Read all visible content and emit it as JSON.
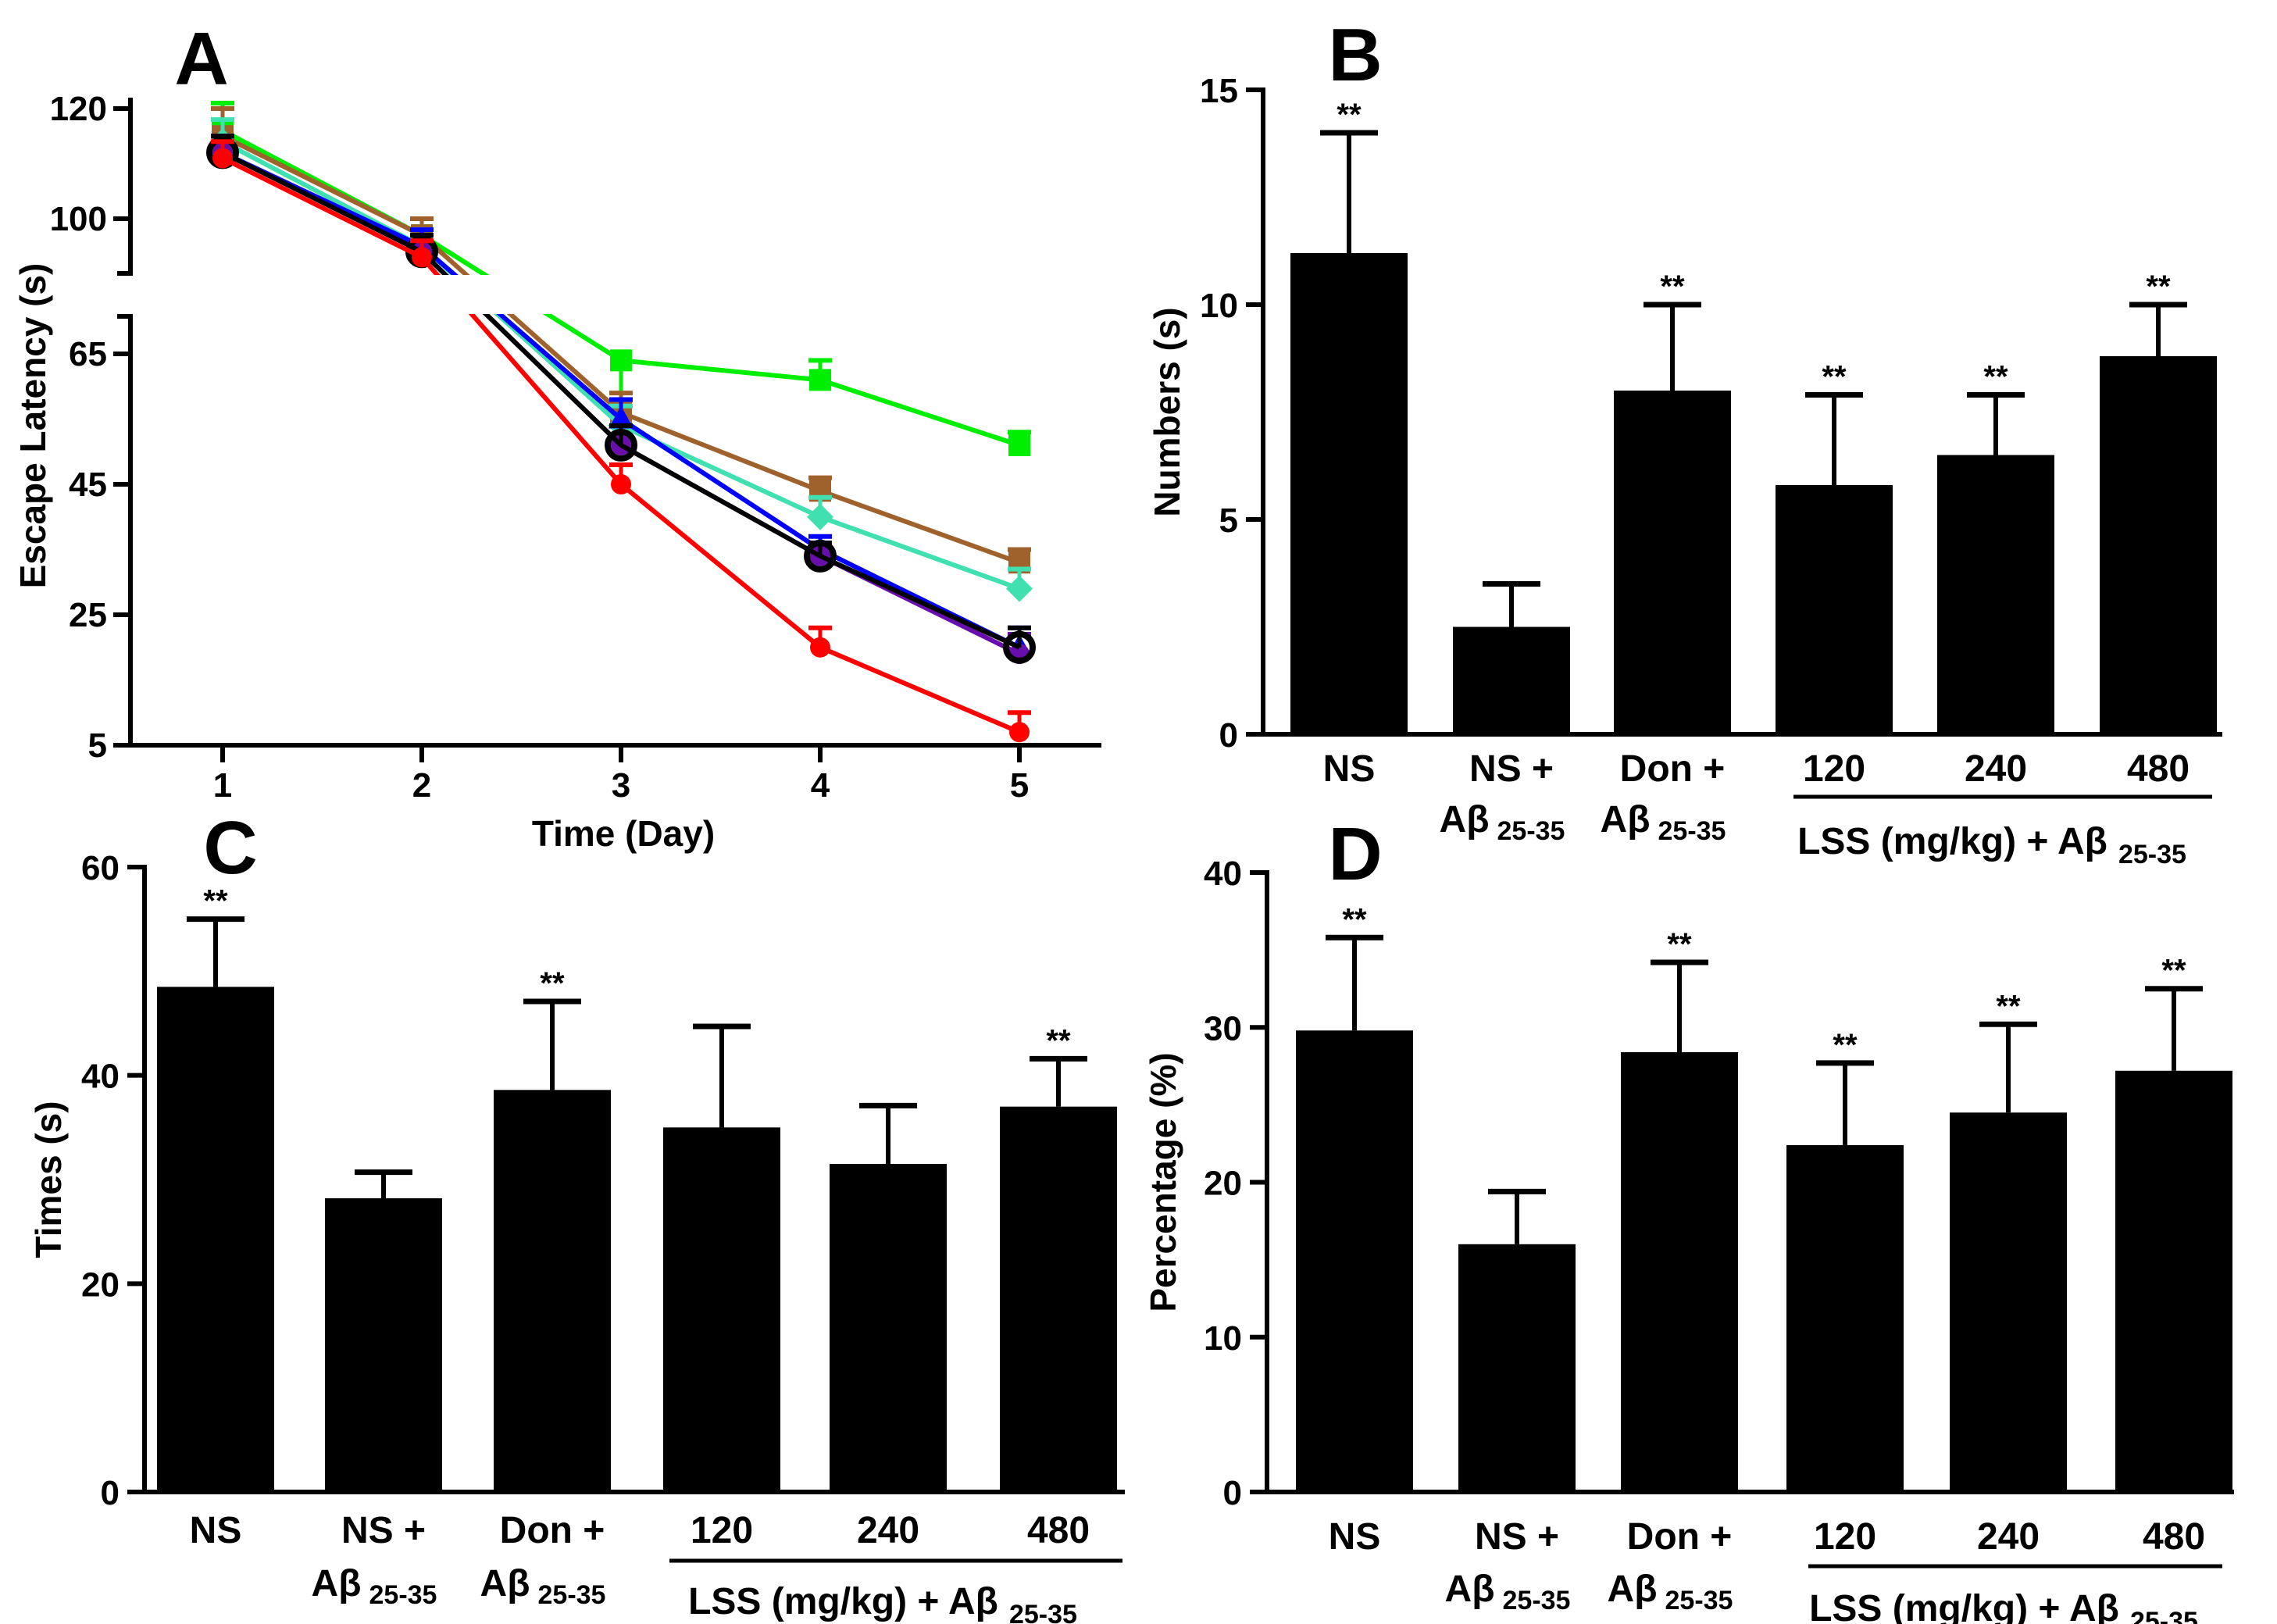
{
  "chart_data": [
    {
      "panel": "A",
      "type": "line",
      "xlabel": "Time (Day)",
      "ylabel": "Escape Latency (s)",
      "x": [
        1,
        2,
        3,
        4,
        5
      ],
      "x_tick_labels": [
        "1",
        "2",
        "3",
        "4",
        "5"
      ],
      "y_ticks": [
        5,
        25,
        45,
        65,
        100,
        120
      ],
      "y_tick_labels": [
        "5",
        "25",
        "45",
        "65",
        "100",
        "120"
      ],
      "axis_break": true,
      "ylim": [
        5,
        125
      ],
      "series": [
        {
          "name": "green",
          "color": "#00ee00",
          "marker": "square",
          "values": [
            116,
            97,
            64,
            61,
            51
          ],
          "errors": [
            5,
            3,
            3,
            3,
            2
          ]
        },
        {
          "name": "brown",
          "color": "#a0622d",
          "marker": "square",
          "values": [
            115,
            97,
            56,
            44,
            33
          ],
          "errors": [
            5,
            3,
            3,
            2,
            2
          ]
        },
        {
          "name": "aquamarine",
          "color": "#40e0b0",
          "marker": "diamond",
          "values": [
            114,
            95,
            54,
            40,
            29
          ],
          "errors": [
            4,
            3,
            3,
            3,
            3
          ]
        },
        {
          "name": "blue",
          "color": "#0000ff",
          "marker": "triangle",
          "values": [
            112,
            95,
            55,
            35,
            20
          ],
          "errors": [
            3,
            3,
            3,
            2,
            3
          ]
        },
        {
          "name": "purple",
          "color": "#6a0dad",
          "marker": "circle",
          "values": [
            112,
            94,
            51,
            34,
            19
          ],
          "errors": [
            3,
            3,
            3,
            2,
            3
          ]
        },
        {
          "name": "black",
          "color": "#000000",
          "marker": "circle",
          "values": [
            112,
            94,
            51,
            34,
            20
          ],
          "errors": [
            3,
            3,
            3,
            2,
            3
          ]
        },
        {
          "name": "red",
          "color": "#ff0000",
          "marker": "circle",
          "values": [
            111,
            93,
            45,
            20,
            7
          ],
          "errors": [
            3,
            3,
            3,
            3,
            3
          ]
        }
      ]
    },
    {
      "panel": "B",
      "type": "bar",
      "ylabel": "Numbers (s)",
      "ylim": [
        0,
        15
      ],
      "y_ticks": [
        0,
        5,
        10,
        15
      ],
      "categories": [
        "NS",
        "NS +",
        "Don +",
        "120",
        "240",
        "480"
      ],
      "values": [
        11.2,
        2.5,
        8.0,
        5.8,
        6.5,
        8.8
      ],
      "errors": [
        2.8,
        1.0,
        2.0,
        2.1,
        1.4,
        1.2
      ],
      "significance": [
        "**",
        "",
        "**",
        "**",
        "**",
        "**"
      ]
    },
    {
      "panel": "C",
      "type": "bar",
      "ylabel": "Times (s)",
      "ylim": [
        0,
        60
      ],
      "y_ticks": [
        0,
        20,
        40,
        60
      ],
      "categories": [
        "NS",
        "NS +",
        "Don +",
        "120",
        "240",
        "480"
      ],
      "values": [
        48.5,
        28.2,
        38.6,
        35.0,
        31.5,
        37.0
      ],
      "errors": [
        6.5,
        2.5,
        8.5,
        9.7,
        5.6,
        4.6
      ],
      "significance": [
        "**",
        "",
        "**",
        "",
        "",
        "**"
      ]
    },
    {
      "panel": "D",
      "type": "bar",
      "ylabel": "Percentage (%)",
      "ylim": [
        0,
        40
      ],
      "y_ticks": [
        0,
        10,
        20,
        30,
        40
      ],
      "categories": [
        "NS",
        "NS +",
        "Don +",
        "120",
        "240",
        "480"
      ],
      "values": [
        29.8,
        16.0,
        28.4,
        22.4,
        24.5,
        27.2
      ],
      "errors": [
        6.0,
        3.4,
        5.8,
        5.3,
        5.7,
        5.3
      ],
      "significance": [
        "**",
        "",
        "**",
        "**",
        "**",
        "**"
      ]
    }
  ],
  "labels": {
    "panel_letters": [
      "A",
      "B",
      "C",
      "D"
    ],
    "ab_prefix": "Aβ",
    "ab_subscript": "25-35",
    "lss_group": "LSS (mg/kg) + Aβ",
    "lss_subscript": "25-35"
  }
}
